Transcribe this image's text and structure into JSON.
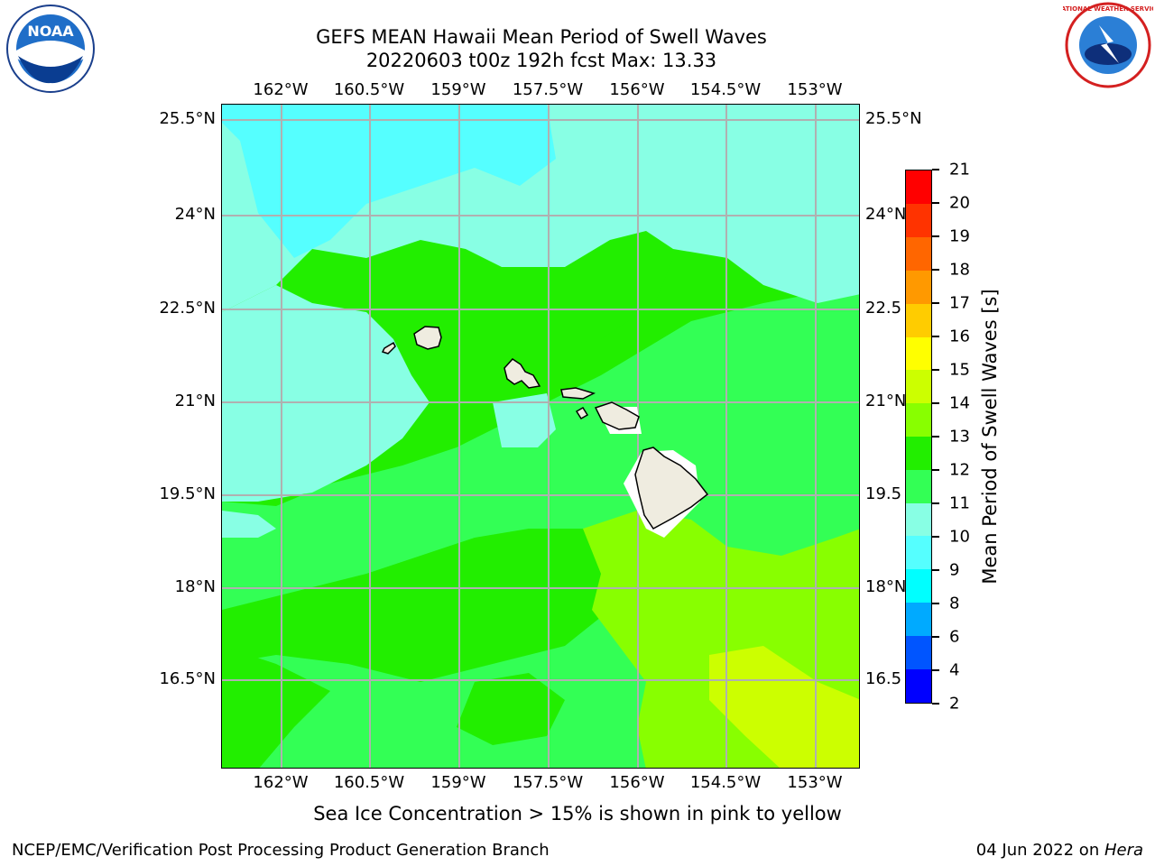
{
  "header": {
    "title_line1": "GEFS MEAN Hawaii Mean Period of Swell Waves",
    "title_line2": "20220603 t00z 192h fcst   Max: 13.33"
  },
  "map": {
    "longitude_ticks": [
      "162°W",
      "160.5°W",
      "159°W",
      "157.5°W",
      "156°W",
      "154.5°W",
      "153°W"
    ],
    "latitude_ticks": [
      "25.5°N",
      "24°N",
      "22.5°N",
      "21°N",
      "19.5°N",
      "18°N",
      "16.5°N"
    ],
    "right_latitude_ticks": [
      "25.5°N",
      "24°N",
      "22.5",
      "21°N",
      "19.5",
      "18°N",
      "16.5"
    ],
    "land_color": "#efece0",
    "grid_color": "#b0b0b0"
  },
  "colorbar": {
    "title": "Mean Period of Swell Waves [s]",
    "tick_labels": [
      "2",
      "4",
      "6",
      "8",
      "9",
      "10",
      "11",
      "12",
      "13",
      "14",
      "15",
      "16",
      "17",
      "18",
      "19",
      "20",
      "21"
    ],
    "colors": [
      "#0000ff",
      "#0055ff",
      "#00aaff",
      "#00ffff",
      "#55ffff",
      "#88ffe4",
      "#33ff55",
      "#22ee00",
      "#88ff00",
      "#ccff00",
      "#ffff00",
      "#ffcc00",
      "#ff9900",
      "#ff6600",
      "#ff3300",
      "#ff0000"
    ]
  },
  "footer": {
    "note": "Sea Ice Concentration > 15% is shown in pink to yellow",
    "credit": "NCEP/EMC/Verification Post Processing Product Generation Branch",
    "date": "04 Jun 2022 on ",
    "host": "Hera"
  },
  "logos": {
    "noaa_text": "NOAA",
    "nws_text": "NATIONAL WEATHER SERVICE"
  }
}
